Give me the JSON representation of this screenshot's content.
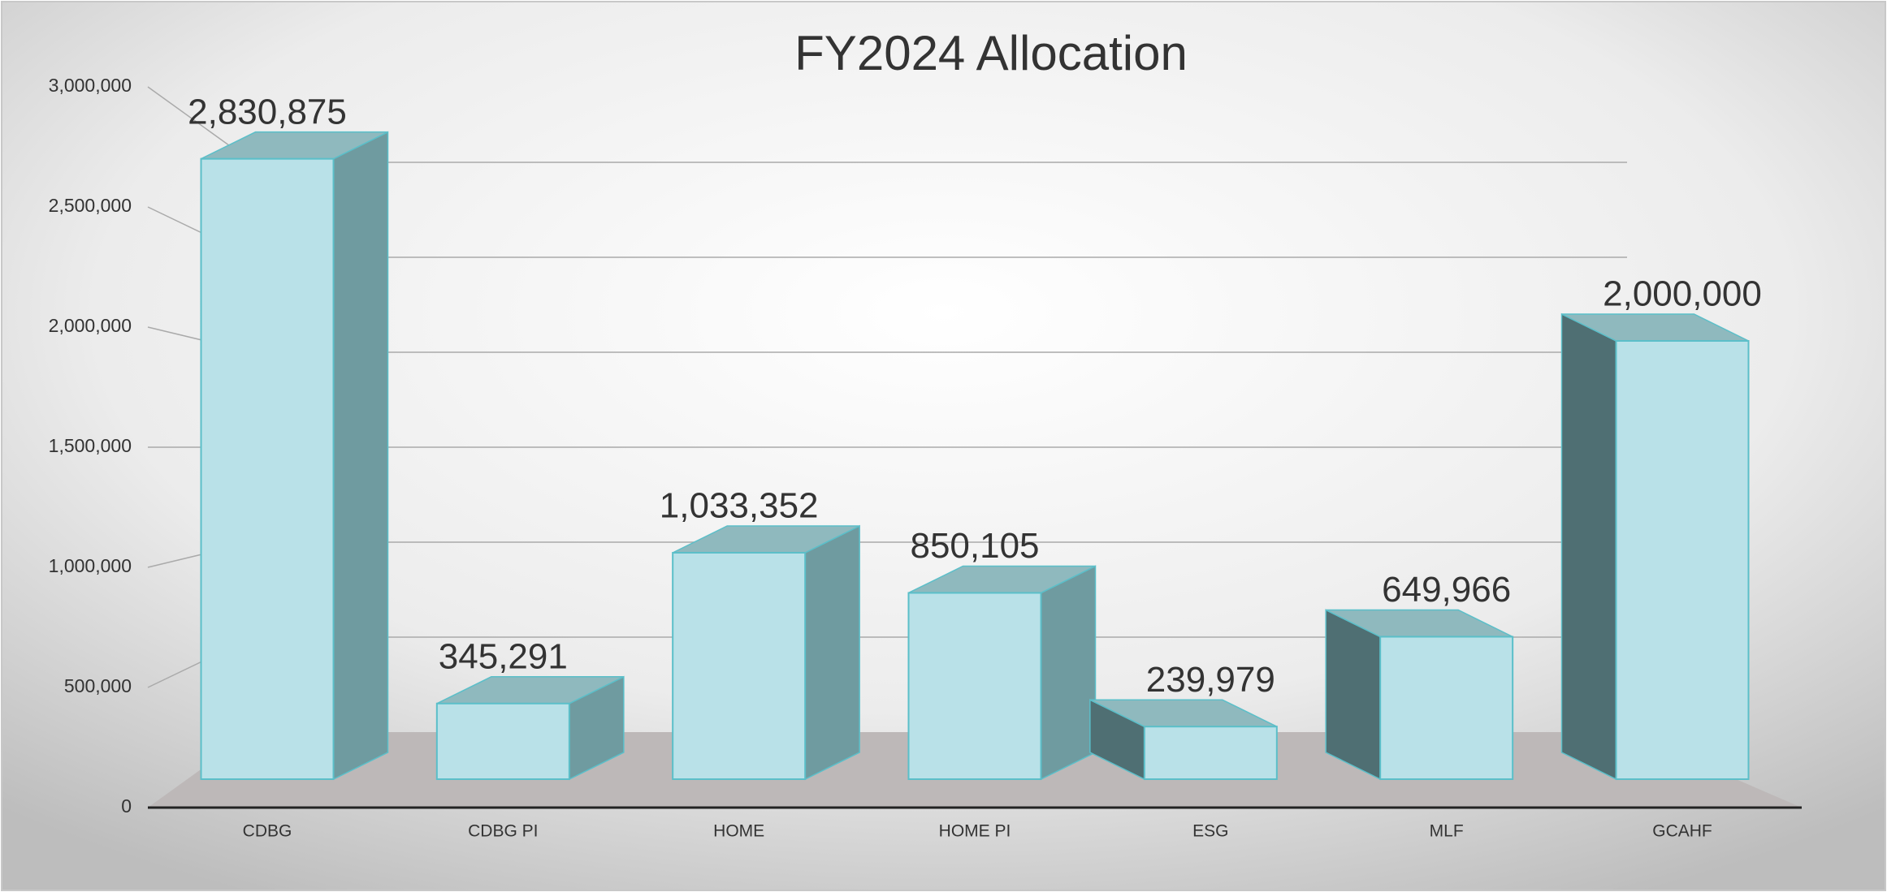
{
  "chart_data": {
    "type": "bar3d",
    "title": "FY2024 Allocation",
    "categories": [
      "CDBG",
      "CDBG PI",
      "HOME",
      "HOME PI",
      "ESG",
      "MLF",
      "GCAHF"
    ],
    "values": [
      2830875,
      345291,
      1033352,
      850105,
      239979,
      649966,
      2000000
    ],
    "value_labels": [
      "2,830,875",
      "345,291",
      "1,033,352",
      "850,105",
      "239,979",
      "649,966",
      "2,000,000"
    ],
    "color": "#b9e1e8",
    "ylim": [
      0,
      3000000
    ],
    "yticks": [
      0,
      {
        "value": 500000,
        "label": "500,000"
      },
      {
        "value": 1000000,
        "label": "1,000,000"
      },
      {
        "value": 1500000,
        "label": "1,500,000"
      },
      {
        "value": 2000000,
        "label": "2,000,000"
      },
      {
        "value": 2500000,
        "label": "2,500,000"
      },
      {
        "value": 3000000,
        "label": "3,000,000"
      }
    ],
    "grid": true
  }
}
